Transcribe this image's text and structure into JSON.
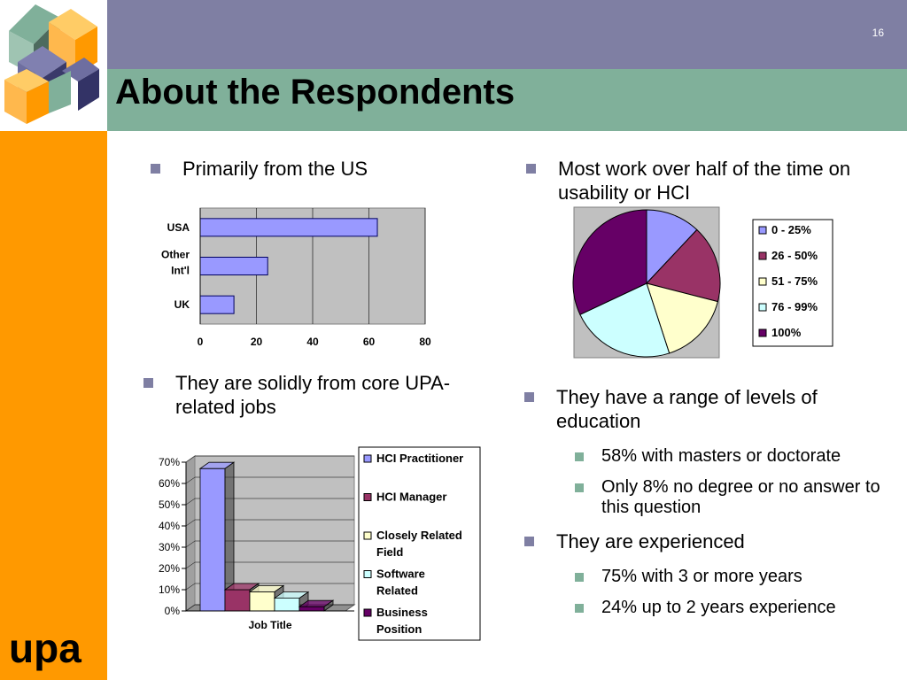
{
  "slide": {
    "number": "16",
    "title": "About the Respondents",
    "logo_text": "upa"
  },
  "bullets": {
    "us": "Primarily from the US",
    "usability": "Most work over half of the time on usability or HCI",
    "jobs": "They are solidly from core UPA-related jobs",
    "education": "They have a range of levels of education",
    "education_subs": [
      "58% with masters or doctorate",
      "Only 8% no degree or no answer to this question"
    ],
    "experienced": "They are experienced",
    "experience_subs": [
      "75% with 3 or more years",
      "24% up to  2 years experience"
    ]
  },
  "colors": {
    "header_band": "#7f7fa3",
    "title_band": "#80b09a",
    "side_bar": "#ff9900",
    "series_1": "#9999ff",
    "series_2": "#993366",
    "series_3": "#ffffcc",
    "series_4": "#ccffff",
    "series_5": "#660066"
  },
  "chart_data": [
    {
      "type": "bar",
      "orientation": "horizontal",
      "categories": [
        "USA",
        "Other Int'l",
        "UK"
      ],
      "values": [
        63,
        24,
        12
      ],
      "xlim": [
        0,
        80
      ],
      "xticks": [
        "0",
        "20",
        "40",
        "60",
        "80"
      ],
      "grid": true
    },
    {
      "type": "pie",
      "labels": [
        "0 - 25%",
        "26 - 50%",
        "51 - 75%",
        "76 - 99%",
        "100%"
      ],
      "values": [
        12,
        17,
        16,
        23,
        32
      ],
      "legend_position": "right"
    },
    {
      "type": "bar",
      "style": "3d-column",
      "xlabel": "Job Title",
      "series": [
        {
          "name": "HCI Practitioner",
          "values": [
            67
          ]
        },
        {
          "name": "HCI Manager",
          "values": [
            10
          ]
        },
        {
          "name": "Closely Related Field",
          "values": [
            9
          ]
        },
        {
          "name": "Software Related",
          "values": [
            6
          ]
        },
        {
          "name": "Business Position",
          "values": [
            2
          ]
        }
      ],
      "ylim": [
        0,
        70
      ],
      "yticks": [
        "0%",
        "10%",
        "20%",
        "30%",
        "40%",
        "50%",
        "60%",
        "70%"
      ],
      "legend_position": "right",
      "grid": true
    }
  ]
}
